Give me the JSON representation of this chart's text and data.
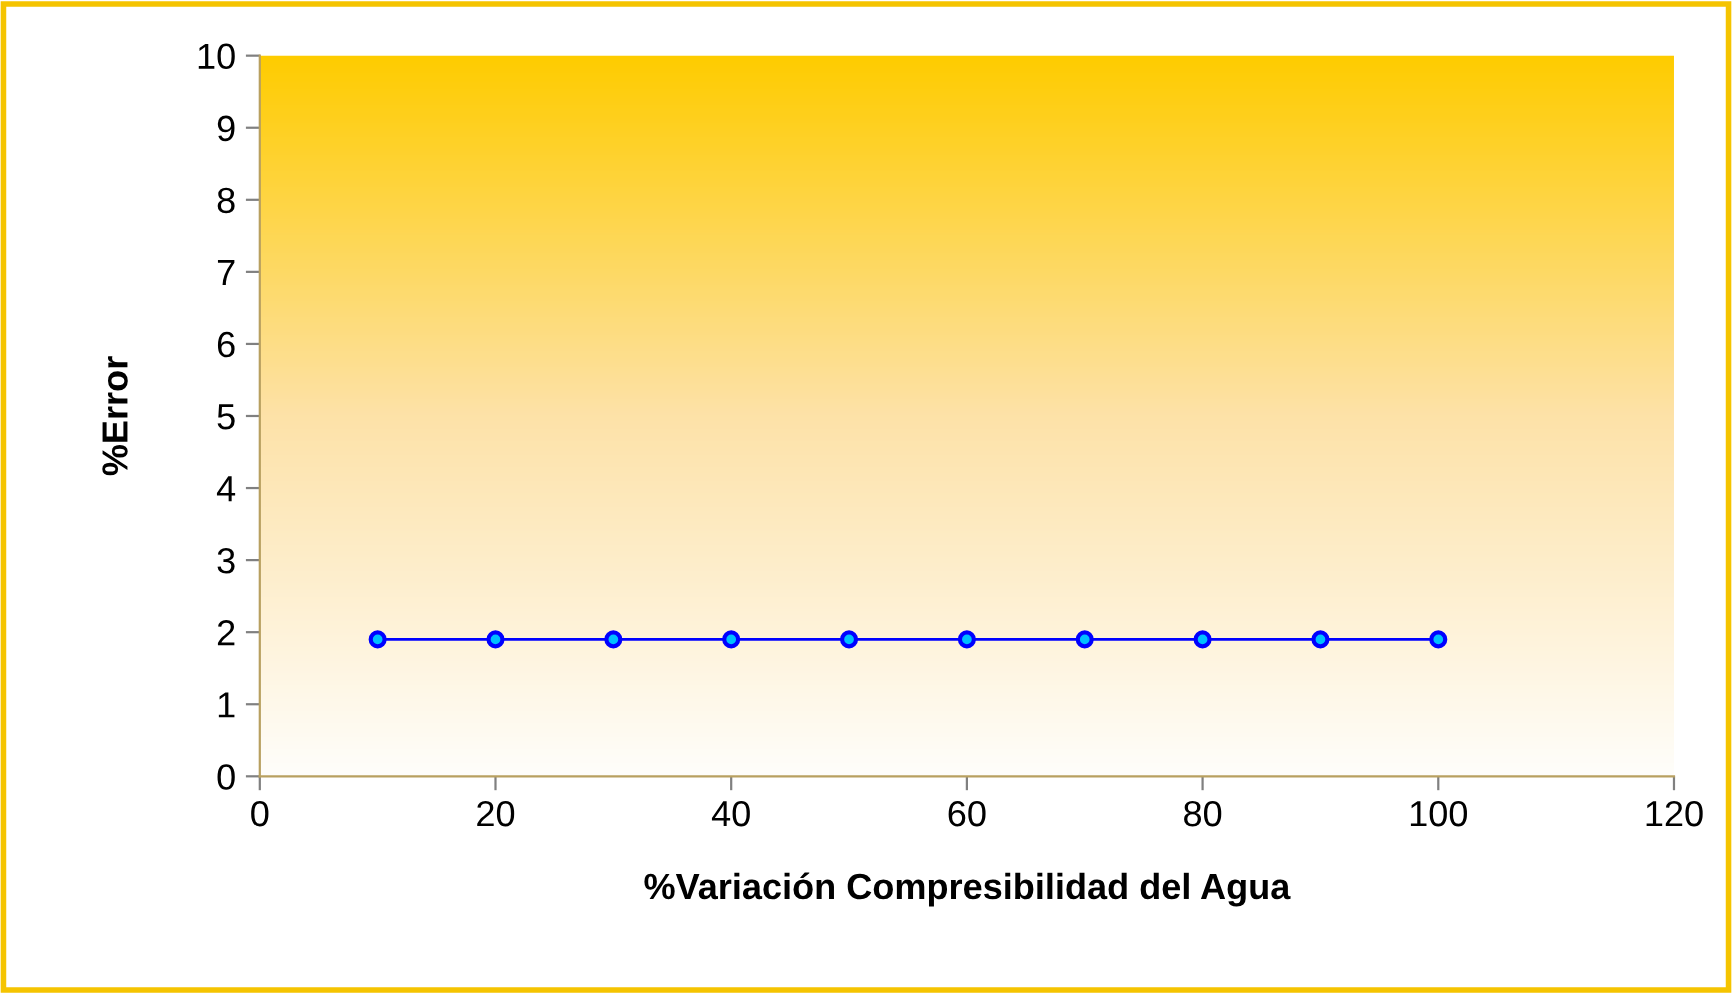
{
  "chart_data": {
    "type": "line",
    "xlabel": "%Variación Compresibilidad del Agua",
    "ylabel": "%Error",
    "x": [
      10,
      20,
      30,
      40,
      50,
      60,
      70,
      80,
      90,
      100
    ],
    "series": [
      {
        "color": "#0000ff",
        "values": [
          1.9,
          1.9,
          1.9,
          1.9,
          1.9,
          1.9,
          1.9,
          1.9,
          1.9,
          1.9
        ]
      }
    ],
    "xlim": [
      0,
      120
    ],
    "xticks": [
      0,
      20,
      40,
      60,
      80,
      100,
      120
    ],
    "ylim": [
      0,
      10
    ],
    "yticks": [
      0,
      1,
      2,
      3,
      4,
      5,
      6,
      7,
      8,
      9,
      10
    ],
    "grid": false,
    "legend": false,
    "marker": "circle",
    "line_style": "solid"
  }
}
